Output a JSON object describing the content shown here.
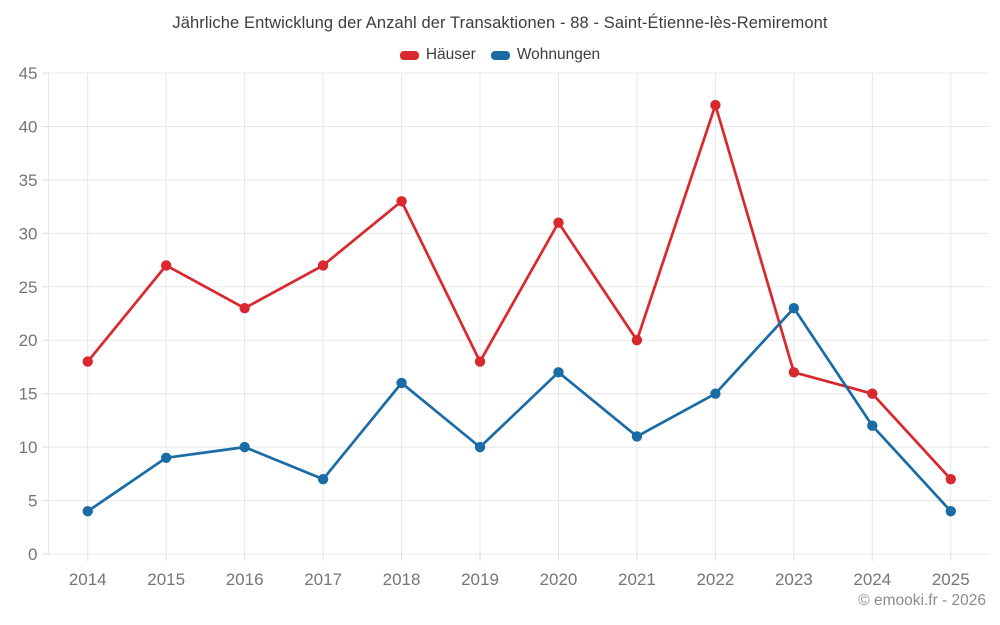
{
  "footer": {
    "credit": "© emooki.fr - 2026"
  },
  "chart_data": {
    "type": "line",
    "title": "Jährliche Entwicklung der Anzahl der Transaktionen - 88 - Saint-Étienne-lès-Remiremont",
    "categories": [
      "2014",
      "2015",
      "2016",
      "2017",
      "2018",
      "2019",
      "2020",
      "2021",
      "2022",
      "2023",
      "2024",
      "2025"
    ],
    "series": [
      {
        "name": "Häuser",
        "color": "#d9282e",
        "values": [
          18,
          27,
          23,
          27,
          33,
          18,
          31,
          20,
          42,
          17,
          15,
          7
        ]
      },
      {
        "name": "Wohnungen",
        "color": "#1a6ca6",
        "values": [
          4,
          9,
          10,
          7,
          16,
          10,
          17,
          11,
          15,
          23,
          12,
          4
        ]
      }
    ],
    "xlabel": "",
    "ylabel": "",
    "ylim": [
      0,
      45
    ],
    "ytick_step": 5,
    "grid": true,
    "legend_position": "top",
    "grid_color": "#e8e8e8",
    "tick_color": "#dedede"
  }
}
